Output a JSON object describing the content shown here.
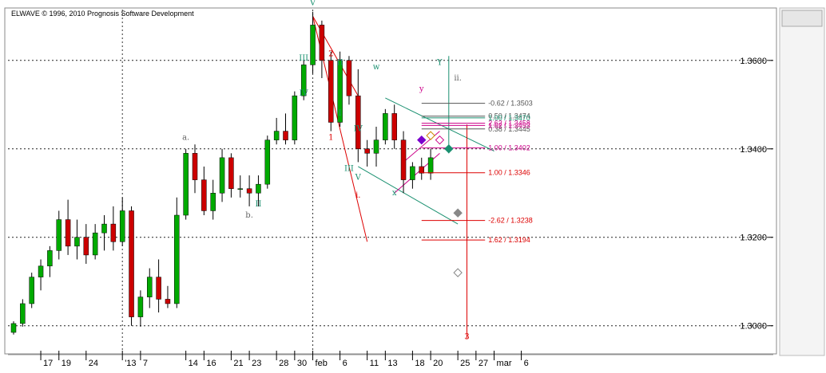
{
  "header": {
    "copyright": "ELWAVE © 1996, 2010 Prognosis Software Development"
  },
  "chart_data": {
    "type": "candlestick",
    "grid": true,
    "legend": "none",
    "ylim": [
      1.294,
      1.3715
    ],
    "y_ticks": [
      "1.3600",
      "1.3400",
      "1.3200",
      "1.3000"
    ],
    "y_tick_values": [
      1.36,
      1.34,
      1.32,
      1.3
    ],
    "x_ticks": [
      {
        "i": 3,
        "label": "17"
      },
      {
        "i": 5,
        "label": "19"
      },
      {
        "i": 8,
        "label": "24"
      },
      {
        "i": 12,
        "label": "'13"
      },
      {
        "i": 14,
        "label": "7"
      },
      {
        "i": 19,
        "label": "14"
      },
      {
        "i": 21,
        "label": "16"
      },
      {
        "i": 24,
        "label": "21"
      },
      {
        "i": 26,
        "label": "23"
      },
      {
        "i": 29,
        "label": "28"
      },
      {
        "i": 31,
        "label": "30"
      },
      {
        "i": 33,
        "label": "feb"
      },
      {
        "i": 36,
        "label": "6"
      },
      {
        "i": 39,
        "label": "11"
      },
      {
        "i": 41,
        "label": "13"
      },
      {
        "i": 44,
        "label": "18"
      },
      {
        "i": 46,
        "label": "20"
      },
      {
        "i": 49,
        "label": "25"
      },
      {
        "i": 51,
        "label": "27"
      },
      {
        "i": 53,
        "label": "mar"
      },
      {
        "i": 56,
        "label": "6"
      }
    ],
    "candles": [
      [
        1.2985,
        1.301,
        1.298,
        1.3005
      ],
      [
        1.3005,
        1.306,
        1.2998,
        1.305
      ],
      [
        1.305,
        1.312,
        1.304,
        1.311
      ],
      [
        1.311,
        1.315,
        1.308,
        1.3135
      ],
      [
        1.3135,
        1.318,
        1.311,
        1.317
      ],
      [
        1.317,
        1.326,
        1.315,
        1.324
      ],
      [
        1.324,
        1.3285,
        1.316,
        1.318
      ],
      [
        1.318,
        1.324,
        1.315,
        1.32
      ],
      [
        1.32,
        1.323,
        1.314,
        1.316
      ],
      [
        1.316,
        1.323,
        1.315,
        1.321
      ],
      [
        1.321,
        1.325,
        1.317,
        1.323
      ],
      [
        1.323,
        1.327,
        1.317,
        1.319
      ],
      [
        1.319,
        1.329,
        1.318,
        1.326
      ],
      [
        1.326,
        1.327,
        1.3,
        1.302
      ],
      [
        1.302,
        1.308,
        1.2998,
        1.3065
      ],
      [
        1.3065,
        1.313,
        1.304,
        1.311
      ],
      [
        1.311,
        1.315,
        1.303,
        1.306
      ],
      [
        1.306,
        1.309,
        1.304,
        1.305
      ],
      [
        1.305,
        1.329,
        1.304,
        1.325
      ],
      [
        1.325,
        1.34,
        1.324,
        1.339
      ],
      [
        1.339,
        1.341,
        1.33,
        1.333
      ],
      [
        1.333,
        1.336,
        1.325,
        1.326
      ],
      [
        1.326,
        1.333,
        1.324,
        1.33
      ],
      [
        1.33,
        1.34,
        1.328,
        1.338
      ],
      [
        1.338,
        1.339,
        1.329,
        1.331
      ],
      [
        1.331,
        1.334,
        1.329,
        1.331
      ],
      [
        1.331,
        1.334,
        1.327,
        1.33
      ],
      [
        1.33,
        1.334,
        1.327,
        1.332
      ],
      [
        1.332,
        1.343,
        1.331,
        1.342
      ],
      [
        1.342,
        1.347,
        1.341,
        1.344
      ],
      [
        1.344,
        1.348,
        1.341,
        1.342
      ],
      [
        1.342,
        1.353,
        1.341,
        1.352
      ],
      [
        1.352,
        1.36,
        1.351,
        1.359
      ],
      [
        1.359,
        1.371,
        1.357,
        1.368
      ],
      [
        1.368,
        1.369,
        1.356,
        1.36
      ],
      [
        1.36,
        1.362,
        1.344,
        1.346
      ],
      [
        1.346,
        1.362,
        1.345,
        1.36
      ],
      [
        1.36,
        1.361,
        1.35,
        1.352
      ],
      [
        1.352,
        1.358,
        1.337,
        1.34
      ],
      [
        1.34,
        1.342,
        1.336,
        1.339
      ],
      [
        1.339,
        1.345,
        1.336,
        1.342
      ],
      [
        1.342,
        1.349,
        1.341,
        1.348
      ],
      [
        1.348,
        1.35,
        1.34,
        1.342
      ],
      [
        1.342,
        1.344,
        1.33,
        1.333
      ],
      [
        1.333,
        1.337,
        1.331,
        1.336
      ],
      [
        1.336,
        1.338,
        1.333,
        1.3345
      ],
      [
        1.3345,
        1.34,
        1.333,
        1.338
      ]
    ],
    "vertical_lines": [
      12,
      33
    ],
    "horizontal_levels": [
      {
        "label": "1.00 / 1.3346",
        "value": 1.3346,
        "color": "#dd0000"
      },
      {
        "label": "-2.62 / 1.3238",
        "value": 1.3238,
        "color": "#dd0000"
      },
      {
        "label": "1.62 / 1.3194",
        "value": 1.3194,
        "color": "#dd0000"
      },
      {
        "label": "-0.62 / 1.3503",
        "value": 1.3503,
        "color": "#555555"
      },
      {
        "label": "0.50 / 1.3474",
        "value": 1.3474,
        "color": "#555555"
      },
      {
        "label": "0.38 / 1.3445",
        "value": 1.3445,
        "color": "#555555"
      },
      {
        "label": "1.00 / 1.3470",
        "value": 1.347,
        "color": "#1a9070"
      },
      {
        "label": "2.62 / 1.3458",
        "value": 1.3458,
        "color": "#cc0088"
      },
      {
        "label": "1.62 / 1.3453",
        "value": 1.3453,
        "color": "#cc0088"
      },
      {
        "label": "1.00 / 1.3402",
        "value": 1.3402,
        "color": "#cc0088"
      }
    ],
    "wave_labels": [
      {
        "text": "a.",
        "i": 19,
        "y": 1.342,
        "color": "#666666"
      },
      {
        "text": "b.",
        "i": 26,
        "y": 1.3245,
        "color": "#666666"
      },
      {
        "text": "II",
        "i": 27,
        "y": 1.327,
        "color": "#1a9070"
      },
      {
        "text": "III",
        "i": 32,
        "y": 1.36,
        "color": "#1a9070"
      },
      {
        "text": "IV",
        "i": 32,
        "y": 1.352,
        "color": "#1a9070"
      },
      {
        "text": "V",
        "i": 33,
        "y": 1.3725,
        "color": "#1a9070"
      },
      {
        "text": "2",
        "i": 35,
        "y": 1.361,
        "color": "#dd0000"
      },
      {
        "text": "II",
        "i": 36,
        "y": 1.359,
        "color": "#1a9070"
      },
      {
        "text": "I",
        "i": 36,
        "y": 1.3475,
        "color": "#1a9070"
      },
      {
        "text": "1",
        "i": 35,
        "y": 1.342,
        "color": "#dd0000"
      },
      {
        "text": "IV",
        "i": 38,
        "y": 1.344,
        "color": "#1a9070"
      },
      {
        "text": "III",
        "i": 37,
        "y": 1.335,
        "color": "#1a9070"
      },
      {
        "text": "V",
        "i": 38,
        "y": 1.333,
        "color": "#1a9070"
      },
      {
        "text": "i.",
        "i": 38,
        "y": 1.329,
        "color": "#dd0000"
      },
      {
        "text": "w",
        "i": 40,
        "y": 1.358,
        "color": "#1a9070"
      },
      {
        "text": "x",
        "i": 42,
        "y": 1.3295,
        "color": "#1a9070"
      },
      {
        "text": "y",
        "i": 45,
        "y": 1.353,
        "color": "#cc0088"
      },
      {
        "text": "Y",
        "i": 47,
        "y": 1.359,
        "color": "#1a9070"
      },
      {
        "text": "ii.",
        "i": 49,
        "y": 1.3555,
        "color": "#666666"
      },
      {
        "text": "3",
        "i": 50,
        "y": 1.297,
        "color": "#dd0000"
      }
    ]
  }
}
